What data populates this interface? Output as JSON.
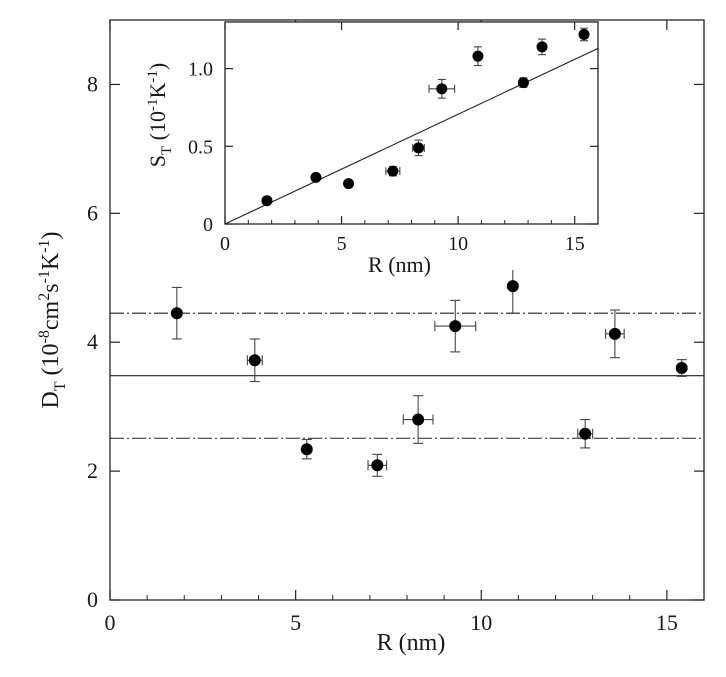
{
  "chart_data": [
    {
      "type": "scatter",
      "panel": "main",
      "xlabel": "R (nm)",
      "ylabel_main": "D",
      "ylabel_sub": "T",
      "ylabel_units_prefix": " (10",
      "ylabel_exp1": "-8",
      "ylabel_mid1": "cm",
      "ylabel_exp2": "2",
      "ylabel_mid2": "s",
      "ylabel_exp3": "-1",
      "ylabel_mid3": "K",
      "ylabel_exp4": "-1",
      "ylabel_close": ")",
      "xlim": [
        0,
        16
      ],
      "ylim": [
        0,
        9
      ],
      "xticks": [
        0,
        5,
        10,
        15
      ],
      "xtick_labels": [
        "0",
        "5",
        "10",
        "15"
      ],
      "yticks": [
        0,
        2,
        4,
        6,
        8
      ],
      "ytick_labels": [
        "0",
        "2",
        "4",
        "6",
        "8"
      ],
      "grid": false,
      "series": [
        {
          "points": [
            {
              "x": 1.8,
              "y": 4.45,
              "xerr": 0,
              "yerr": 0.4
            },
            {
              "x": 3.9,
              "y": 3.72,
              "xerr": 0.2,
              "yerr": 0.33
            },
            {
              "x": 5.3,
              "y": 2.34,
              "xerr": 0,
              "yerr": 0.15
            },
            {
              "x": 7.2,
              "y": 2.09,
              "xerr": 0.25,
              "yerr": 0.17
            },
            {
              "x": 8.3,
              "y": 2.8,
              "xerr": 0.4,
              "yerr": 0.37
            },
            {
              "x": 9.3,
              "y": 4.25,
              "xerr": 0.55,
              "yerr": 0.4
            },
            {
              "x": 10.85,
              "y": 4.87,
              "xerr": 0,
              "yerr": 0.42
            },
            {
              "x": 12.8,
              "y": 2.58,
              "xerr": 0.2,
              "yerr": 0.22
            },
            {
              "x": 13.6,
              "y": 4.13,
              "xerr": 0.25,
              "yerr": 0.37
            },
            {
              "x": 15.4,
              "y": 3.6,
              "xerr": 0,
              "yerr": 0.13
            }
          ]
        }
      ],
      "reference_lines": [
        {
          "y": 3.48,
          "style": "solid"
        },
        {
          "y": 4.45,
          "style": "dash-dot"
        },
        {
          "y": 2.51,
          "style": "dash-dot"
        }
      ]
    },
    {
      "type": "scatter",
      "panel": "inset",
      "xlabel": "R (nm)",
      "ylabel_main": "S",
      "ylabel_sub": "T",
      "ylabel_units_prefix": " (10",
      "ylabel_exp1": "-1",
      "ylabel_mid1": "K",
      "ylabel_exp2": "-1",
      "ylabel_close": ")",
      "xlim": [
        0,
        16
      ],
      "ylim": [
        0,
        1.3
      ],
      "xticks": [
        0,
        5,
        10,
        15
      ],
      "xtick_labels": [
        "0",
        "5",
        "10",
        "15"
      ],
      "yticks": [
        0,
        0.5,
        1.0
      ],
      "ytick_labels": [
        "0",
        "0.5",
        "1.0"
      ],
      "grid": false,
      "series": [
        {
          "points": [
            {
              "x": 1.8,
              "y": 0.15,
              "xerr": 0,
              "yerr": 0
            },
            {
              "x": 3.9,
              "y": 0.3,
              "xerr": 0,
              "yerr": 0
            },
            {
              "x": 5.3,
              "y": 0.26,
              "xerr": 0,
              "yerr": 0
            },
            {
              "x": 7.2,
              "y": 0.34,
              "xerr": 0.3,
              "yerr": 0.03
            },
            {
              "x": 8.3,
              "y": 0.49,
              "xerr": 0.25,
              "yerr": 0.05
            },
            {
              "x": 9.3,
              "y": 0.87,
              "xerr": 0.55,
              "yerr": 0.06
            },
            {
              "x": 10.85,
              "y": 1.08,
              "xerr": 0,
              "yerr": 0.06
            },
            {
              "x": 12.8,
              "y": 0.91,
              "xerr": 0,
              "yerr": 0.03
            },
            {
              "x": 13.6,
              "y": 1.14,
              "xerr": 0,
              "yerr": 0.05
            },
            {
              "x": 15.4,
              "y": 1.22,
              "xerr": 0,
              "yerr": 0.04
            }
          ]
        }
      ],
      "fit_line": {
        "x0": 0,
        "y0": 0,
        "x1": 16,
        "y1": 1.13
      }
    }
  ]
}
